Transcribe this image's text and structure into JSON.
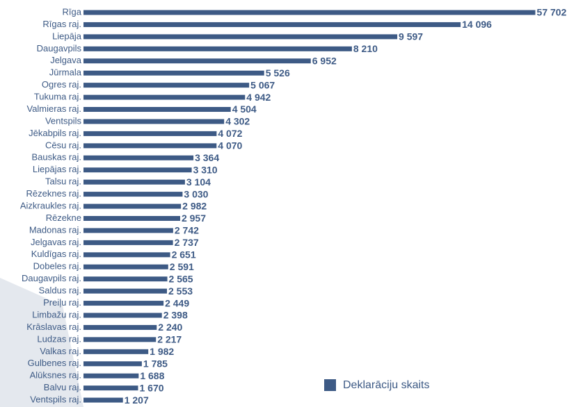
{
  "chart_data": {
    "type": "bar",
    "orientation": "horizontal",
    "categories": [
      "Rīga",
      "Rīgas raj.",
      "Liepāja",
      "Daugavpils",
      "Jelgava",
      "Jūrmala",
      "Ogres raj.",
      "Tukuma raj.",
      "Valmieras raj.",
      "Ventspils",
      "Jēkabpils raj.",
      "Cēsu raj.",
      "Bauskas raj.",
      "Liepājas raj.",
      "Talsu raj.",
      "Rēzeknes raj.",
      "Aizkraukles raj.",
      "Rēzekne",
      "Madonas raj.",
      "Jelgavas raj.",
      "Kuldīgas raj.",
      "Dobeles raj.",
      "Daugavpils raj.",
      "Saldus raj.",
      "Preiļu raj.",
      "Limbažu raj.",
      "Krāslavas raj.",
      "Ludzas raj.",
      "Valkas raj.",
      "Gulbenes raj.",
      "Alūksnes raj.",
      "Balvu raj.",
      "Ventspils raj."
    ],
    "series": [
      {
        "name": "Deklarāciju skaits",
        "color": "#3d5a85",
        "values": [
          57702,
          14096,
          9597,
          8210,
          6952,
          5526,
          5067,
          4942,
          4504,
          4302,
          4072,
          4070,
          3364,
          3310,
          3104,
          3030,
          2982,
          2957,
          2742,
          2737,
          2651,
          2591,
          2565,
          2553,
          2449,
          2398,
          2240,
          2217,
          1982,
          1785,
          1688,
          1670,
          1207
        ],
        "value_labels": [
          "57 702",
          "14 096",
          "9 597",
          "8 210",
          "6 952",
          "5 526",
          "5 067",
          "4 942",
          "4 504",
          "4 302",
          "4 072",
          "4 070",
          "3 364",
          "3 310",
          "3 104",
          "3 030",
          "2 982",
          "2 957",
          "2 742",
          "2 737",
          "2 651",
          "2 591",
          "2 565",
          "2 553",
          "2 449",
          "2 398",
          "2 240",
          "2 217",
          "1 982",
          "1 785",
          "1 688",
          "1 670",
          "1 207"
        ]
      }
    ],
    "legend": "bottom-right"
  }
}
